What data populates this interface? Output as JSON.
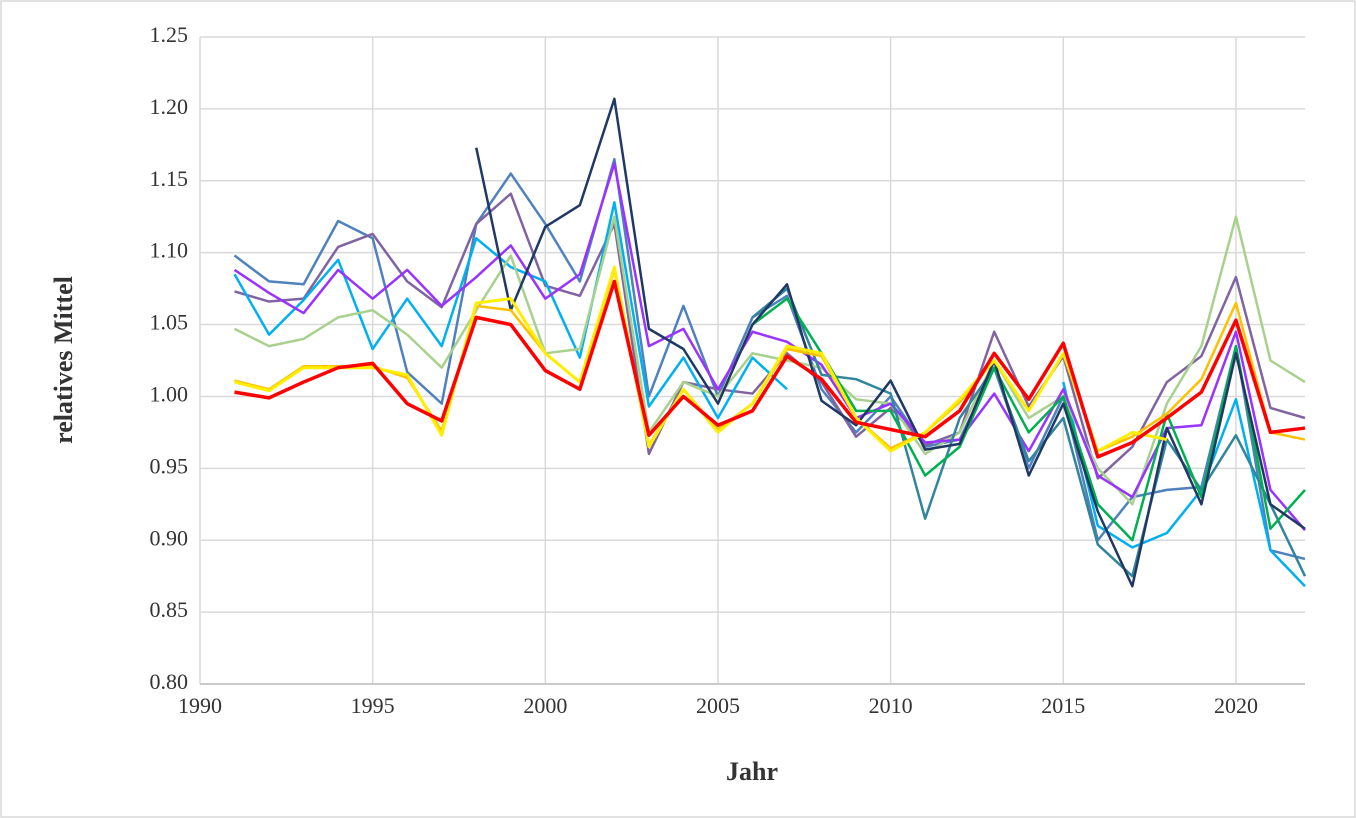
{
  "chart_data": {
    "type": "line",
    "x_label": "Jahr",
    "y_label": "relatives Mittel",
    "x": [
      1991,
      1992,
      1993,
      1994,
      1995,
      1996,
      1997,
      1998,
      1999,
      2000,
      2001,
      2002,
      2003,
      2004,
      2005,
      2006,
      2007,
      2008,
      2009,
      2010,
      2011,
      2012,
      2013,
      2014,
      2015,
      2016,
      2017,
      2018,
      2019,
      2020,
      2021,
      2022
    ],
    "xlim": [
      1990,
      2022
    ],
    "xticks": [
      1990,
      1995,
      2000,
      2005,
      2010,
      2015,
      2020
    ],
    "ylim": [
      0.8,
      1.25
    ],
    "yticks": [
      {
        "value": 0.8,
        "label": "0.80"
      },
      0.85,
      {
        "value": 0.9,
        "label": "0.90"
      },
      0.95,
      {
        "value": 1.0,
        "label": "1.00"
      },
      1.05,
      {
        "value": 1.1,
        "label": "1.10"
      },
      1.15,
      {
        "value": 1.2,
        "label": "1.20"
      },
      1.25
    ],
    "grid": true,
    "series": [
      {
        "color": "#4f81bd",
        "values": [
          1.098,
          1.08,
          1.078,
          1.122,
          1.11,
          1.017,
          0.995,
          1.12,
          1.155,
          1.12,
          1.08,
          1.165,
          1.0,
          1.063,
          1.0,
          1.055,
          1.07,
          1.005,
          0.975,
          1.0,
          0.965,
          0.97,
          1.02,
          0.95,
          1.0,
          0.9,
          0.93,
          0.935,
          0.937,
          1.035,
          0.893,
          0.887
        ]
      },
      {
        "color": "#8064a2",
        "values": [
          1.073,
          1.066,
          1.068,
          1.104,
          1.113,
          1.08,
          1.062,
          1.12,
          1.141,
          1.077,
          1.07,
          1.12,
          0.96,
          1.01,
          1.005,
          1.002,
          1.03,
          1.01,
          0.972,
          0.992,
          0.966,
          0.975,
          1.045,
          0.993,
          1.028,
          0.943,
          0.965,
          1.01,
          1.028,
          1.083,
          0.992,
          0.985
        ]
      },
      {
        "color": "#00b0f0",
        "values": [
          1.085,
          1.043,
          1.067,
          1.095,
          1.033,
          1.068,
          1.035,
          1.11,
          1.09,
          1.08,
          1.027,
          1.135,
          0.993,
          1.027,
          0.985,
          1.027,
          1.005,
          null,
          null,
          null,
          null,
          null,
          null,
          null,
          1.01,
          0.91,
          0.895,
          0.905,
          0.935,
          0.998,
          0.893,
          0.868
        ]
      },
      {
        "color": "#a9d18e",
        "values": [
          1.047,
          1.035,
          1.04,
          1.055,
          1.06,
          1.043,
          1.02,
          1.06,
          1.098,
          1.03,
          1.033,
          1.125,
          0.975,
          1.01,
          1.0,
          1.03,
          1.025,
          1.02,
          0.998,
          0.995,
          0.96,
          0.975,
          1.025,
          0.985,
          1.0,
          0.95,
          0.925,
          0.995,
          1.035,
          1.125,
          1.025,
          1.01
        ]
      },
      {
        "color": "#9933ff",
        "values": [
          1.088,
          1.072,
          1.058,
          1.088,
          1.068,
          1.088,
          1.063,
          1.083,
          1.105,
          1.068,
          1.085,
          1.162,
          1.035,
          1.047,
          1.005,
          1.045,
          1.038,
          1.022,
          0.985,
          0.995,
          0.968,
          0.97,
          1.002,
          0.962,
          1.005,
          0.945,
          0.93,
          0.978,
          0.98,
          1.045,
          0.935,
          0.907
        ]
      },
      {
        "color": "#31859c",
        "values": [
          null,
          null,
          null,
          null,
          null,
          null,
          null,
          null,
          null,
          null,
          null,
          null,
          null,
          null,
          null,
          1.055,
          1.075,
          1.015,
          1.012,
          1.002,
          0.915,
          0.985,
          1.02,
          0.955,
          0.985,
          0.897,
          0.875,
          0.97,
          0.935,
          0.973,
          0.925,
          0.875
        ]
      },
      {
        "color": "#00b050",
        "values": [
          null,
          null,
          null,
          null,
          null,
          null,
          null,
          null,
          null,
          null,
          null,
          null,
          null,
          null,
          null,
          1.05,
          1.068,
          1.03,
          0.99,
          0.99,
          0.945,
          0.965,
          1.02,
          0.975,
          1.0,
          0.925,
          0.9,
          0.988,
          0.93,
          1.035,
          0.908,
          0.935
        ]
      },
      {
        "color": "#203864",
        "values": [
          null,
          null,
          null,
          null,
          null,
          null,
          null,
          1.173,
          1.06,
          1.118,
          1.133,
          1.207,
          1.047,
          1.033,
          0.995,
          1.05,
          1.078,
          0.997,
          0.98,
          1.011,
          0.963,
          0.967,
          1.025,
          0.945,
          0.995,
          0.92,
          0.868,
          0.978,
          0.925,
          1.03,
          0.925,
          0.908
        ]
      },
      {
        "color": "#ffc000",
        "values": [
          1.011,
          1.005,
          1.021,
          1.021,
          1.021,
          1.013,
          0.976,
          1.063,
          1.06,
          1.03,
          1.01,
          1.088,
          0.966,
          1.005,
          0.977,
          0.995,
          1.033,
          1.028,
          0.985,
          0.964,
          0.975,
          0.996,
          1.025,
          0.99,
          1.03,
          0.962,
          0.972,
          0.988,
          1.012,
          1.065,
          0.975,
          0.97
        ]
      },
      {
        "color": "#ffee00",
        "values": [
          1.01,
          1.004,
          1.02,
          1.02,
          1.02,
          1.015,
          0.973,
          1.065,
          1.068,
          1.03,
          1.01,
          1.09,
          0.965,
          1.005,
          0.975,
          0.995,
          1.035,
          1.03,
          0.985,
          0.962,
          0.975,
          0.998,
          1.025,
          0.99,
          1.03,
          0.962,
          0.975,
          0.97,
          null,
          null,
          null,
          null
        ]
      },
      {
        "color": "#ff0000",
        "values": [
          1.003,
          0.999,
          1.01,
          1.02,
          1.023,
          0.995,
          0.983,
          1.055,
          1.05,
          1.018,
          1.005,
          1.08,
          0.973,
          1.0,
          0.98,
          0.99,
          1.028,
          1.012,
          0.982,
          0.977,
          0.972,
          0.99,
          1.03,
          0.998,
          1.037,
          0.958,
          0.968,
          0.985,
          1.003,
          1.053,
          0.975,
          0.978
        ]
      }
    ]
  }
}
